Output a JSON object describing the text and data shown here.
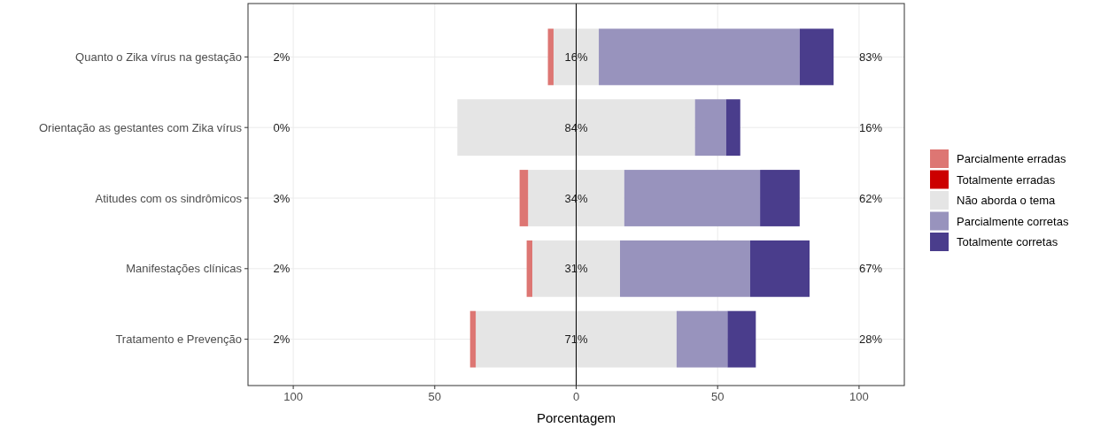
{
  "chart_data": {
    "type": "bar",
    "orientation": "horizontal",
    "stacked": true,
    "xlabel": "Porcentagem",
    "categories": [
      "Quanto o Zika vírus na gestação",
      "Orientação as gestantes com Zika vírus",
      "Atitudes com os sindrômicos",
      "Manifestações clínicas",
      "Tratamento e Prevenção"
    ],
    "series": [
      {
        "color": "#e5e5e5",
        "values": [
          -8,
          -42,
          -17,
          -15.5,
          -35.5
        ]
      },
      {
        "name": "Parcialmente erradas",
        "color": "#dd7673",
        "values": [
          -2,
          0,
          -3,
          -2,
          -2
        ]
      },
      {
        "name": "Totalmente erradas",
        "color": "#cc0000",
        "values": [
          0,
          0,
          0,
          0,
          0
        ]
      },
      {
        "name": "Não aborda o tema",
        "color": "#e5e5e5",
        "values": [
          8,
          42,
          17,
          15.5,
          35.5
        ]
      },
      {
        "name": "Parcialmente corretas",
        "color": "#9893bd",
        "values": [
          71,
          11,
          48,
          46,
          18
        ]
      },
      {
        "name": "Totalmente corretas",
        "color": "#4a3d8c",
        "values": [
          12,
          5,
          14,
          21,
          10
        ]
      }
    ],
    "xlim": [
      -116,
      116
    ],
    "xticks": [
      {
        "value": -100,
        "label": "100"
      },
      {
        "value": -50,
        "label": "50"
      },
      0,
      50,
      {
        "value": 100,
        "label": "100"
      }
    ],
    "ref_lines": [
      {
        "axis": "x",
        "value": 0,
        "color": "#000000"
      }
    ],
    "annotations": [
      "2%",
      "16%",
      "83%",
      "0%",
      "84%",
      "16%",
      "3%",
      "34%",
      "62%",
      "2%",
      "31%",
      "67%",
      "2%",
      "71%",
      "28%"
    ],
    "grid": true,
    "legend": "right"
  }
}
